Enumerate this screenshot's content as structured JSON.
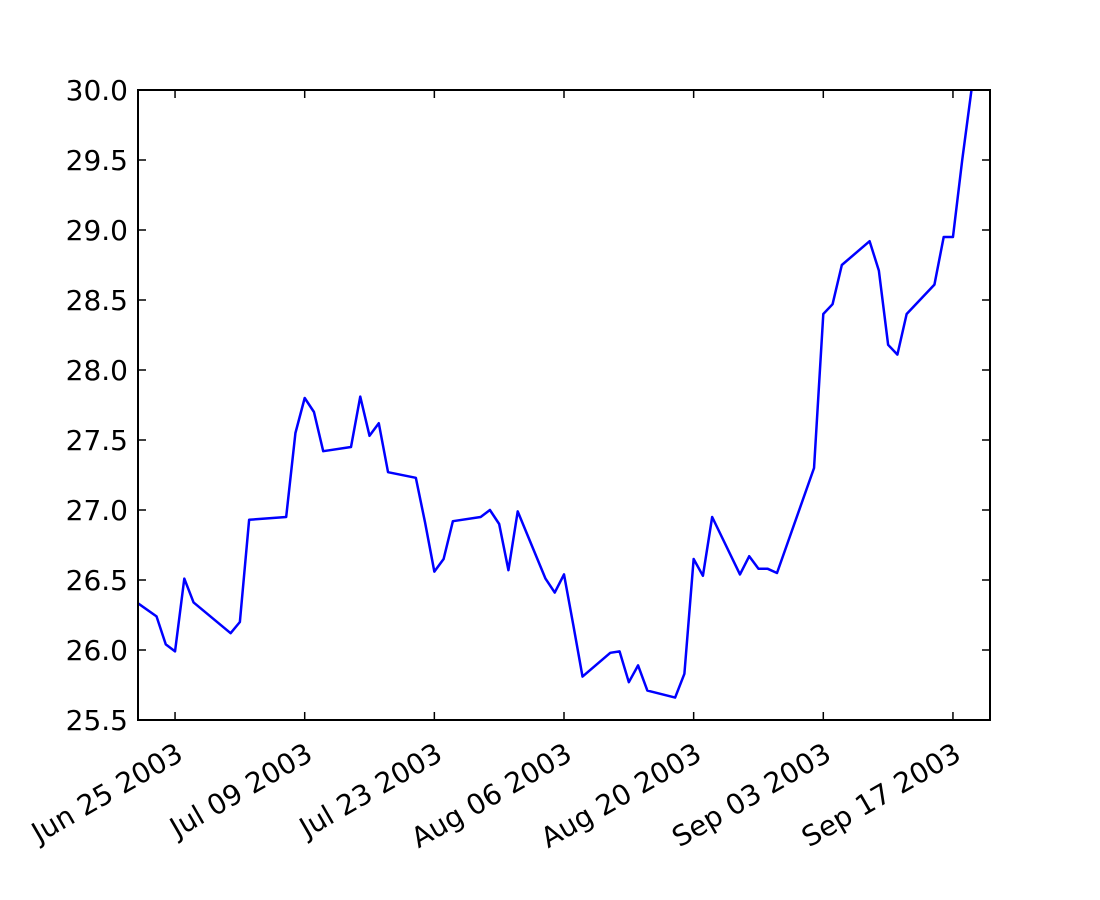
{
  "chart_data": {
    "type": "line",
    "title": "",
    "xlabel": "",
    "ylabel": "",
    "grid": false,
    "xlim": [
      "2003-06-21",
      "2003-09-21"
    ],
    "ylim": [
      25.5,
      30.0
    ],
    "line_color": "#0000ff",
    "x_ticks": [
      "2003-06-25",
      "2003-07-09",
      "2003-07-23",
      "2003-08-06",
      "2003-08-20",
      "2003-09-03",
      "2003-09-17"
    ],
    "x_tick_labels": [
      "Jun 25 2003",
      "Jul 09 2003",
      "Jul 23 2003",
      "Aug 06 2003",
      "Aug 20 2003",
      "Sep 03 2003",
      "Sep 17 2003"
    ],
    "y_ticks": [
      25.5,
      26.0,
      26.5,
      27.0,
      27.5,
      28.0,
      28.5,
      29.0,
      29.5,
      30.0
    ],
    "y_tick_labels": [
      "25.5",
      "26.0",
      "26.5",
      "27.0",
      "27.5",
      "28.0",
      "28.5",
      "29.0",
      "29.5",
      "30.0"
    ],
    "series": [
      {
        "x": [
          "2003-06-19",
          "2003-06-20",
          "2003-06-23",
          "2003-06-24",
          "2003-06-25",
          "2003-06-26",
          "2003-06-27",
          "2003-07-01",
          "2003-07-02",
          "2003-07-03",
          "2003-07-07",
          "2003-07-08",
          "2003-07-09",
          "2003-07-10",
          "2003-07-11",
          "2003-07-14",
          "2003-07-15",
          "2003-07-16",
          "2003-07-17",
          "2003-07-18",
          "2003-07-21",
          "2003-07-22",
          "2003-07-23",
          "2003-07-24",
          "2003-07-25",
          "2003-07-28",
          "2003-07-29",
          "2003-07-30",
          "2003-07-31",
          "2003-08-01",
          "2003-08-04",
          "2003-08-05",
          "2003-08-06",
          "2003-08-07",
          "2003-08-08",
          "2003-08-11",
          "2003-08-12",
          "2003-08-13",
          "2003-08-14",
          "2003-08-15",
          "2003-08-18",
          "2003-08-19",
          "2003-08-20",
          "2003-08-21",
          "2003-08-22",
          "2003-08-25",
          "2003-08-26",
          "2003-08-27",
          "2003-08-28",
          "2003-08-29",
          "2003-09-02",
          "2003-09-03",
          "2003-09-04",
          "2003-09-05",
          "2003-09-08",
          "2003-09-09",
          "2003-09-10",
          "2003-09-11",
          "2003-09-12",
          "2003-09-15",
          "2003-09-16",
          "2003-09-17",
          "2003-09-18",
          "2003-09-19"
        ],
        "y": [
          26.4,
          26.38,
          26.24,
          26.04,
          25.99,
          26.51,
          26.34,
          26.12,
          26.2,
          26.93,
          26.95,
          27.55,
          27.8,
          27.7,
          27.42,
          27.45,
          27.81,
          27.53,
          27.62,
          27.27,
          27.23,
          26.91,
          26.56,
          26.65,
          26.92,
          26.95,
          27.0,
          26.9,
          26.57,
          26.99,
          26.51,
          26.41,
          26.54,
          26.18,
          25.81,
          25.98,
          25.99,
          25.77,
          25.89,
          25.71,
          25.66,
          25.83,
          26.65,
          26.53,
          26.95,
          26.54,
          26.67,
          26.58,
          26.58,
          26.55,
          27.3,
          28.4,
          28.47,
          28.75,
          28.92,
          28.71,
          28.18,
          28.11,
          28.4,
          28.61,
          28.95,
          28.95,
          29.5,
          30.0
        ]
      }
    ]
  }
}
